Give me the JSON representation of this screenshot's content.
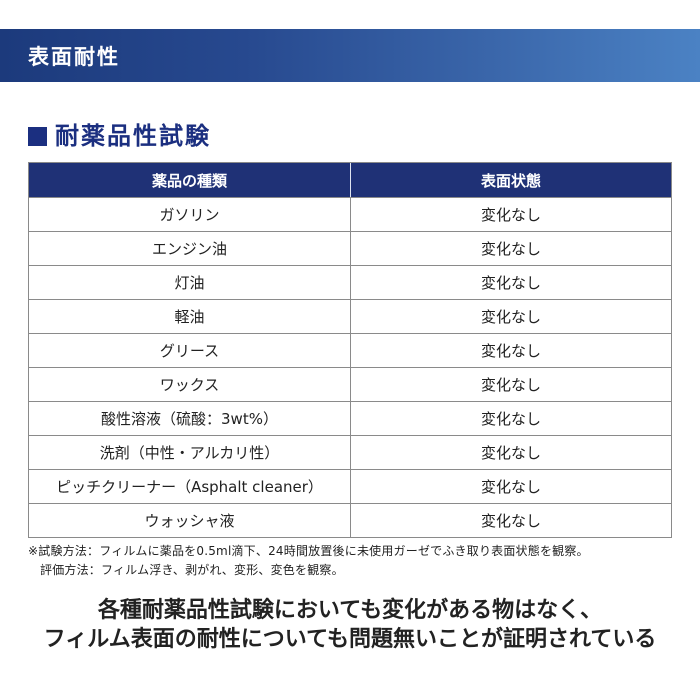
{
  "banner": {
    "title": "表面耐性"
  },
  "section": {
    "title": "耐薬品性試験"
  },
  "table": {
    "headers": [
      "薬品の種類",
      "表面状態"
    ],
    "rows": [
      {
        "chemical": "ガソリン",
        "state": "変化なし"
      },
      {
        "chemical": "エンジン油",
        "state": "変化なし"
      },
      {
        "chemical": "灯油",
        "state": "変化なし"
      },
      {
        "chemical": "軽油",
        "state": "変化なし"
      },
      {
        "chemical": "グリース",
        "state": "変化なし"
      },
      {
        "chemical": "ワックス",
        "state": "変化なし"
      },
      {
        "chemical": "酸性溶液（硫酸：3wt%）",
        "state": "変化なし"
      },
      {
        "chemical": "洗剤（中性・アルカリ性）",
        "state": "変化なし"
      },
      {
        "chemical": "ピッチクリーナー（Asphalt cleaner）",
        "state": "変化なし"
      },
      {
        "chemical": "ウォッシャ液",
        "state": "変化なし"
      }
    ]
  },
  "footnotes": {
    "line1": "※試験方法：フィルムに薬品を0.5ml滴下、24時間放置後に未使用ガーゼでふき取り表面状態を観察。",
    "line2": "評価方法：フィルム浮き、剥がれ、変形、変色を観察。"
  },
  "summary": {
    "line1": "各種耐薬品性試験においても変化がある物はなく、",
    "line2": "フィルム表面の耐性についても問題無いことが証明されている"
  },
  "colors": {
    "banner_gradient_start": "#1c3a7c",
    "banner_gradient_end": "#4b82c4",
    "table_header_bg": "#1f3176",
    "section_title": "#1b2f80",
    "table_border": "#8a8a8a",
    "body_text": "#222222"
  }
}
